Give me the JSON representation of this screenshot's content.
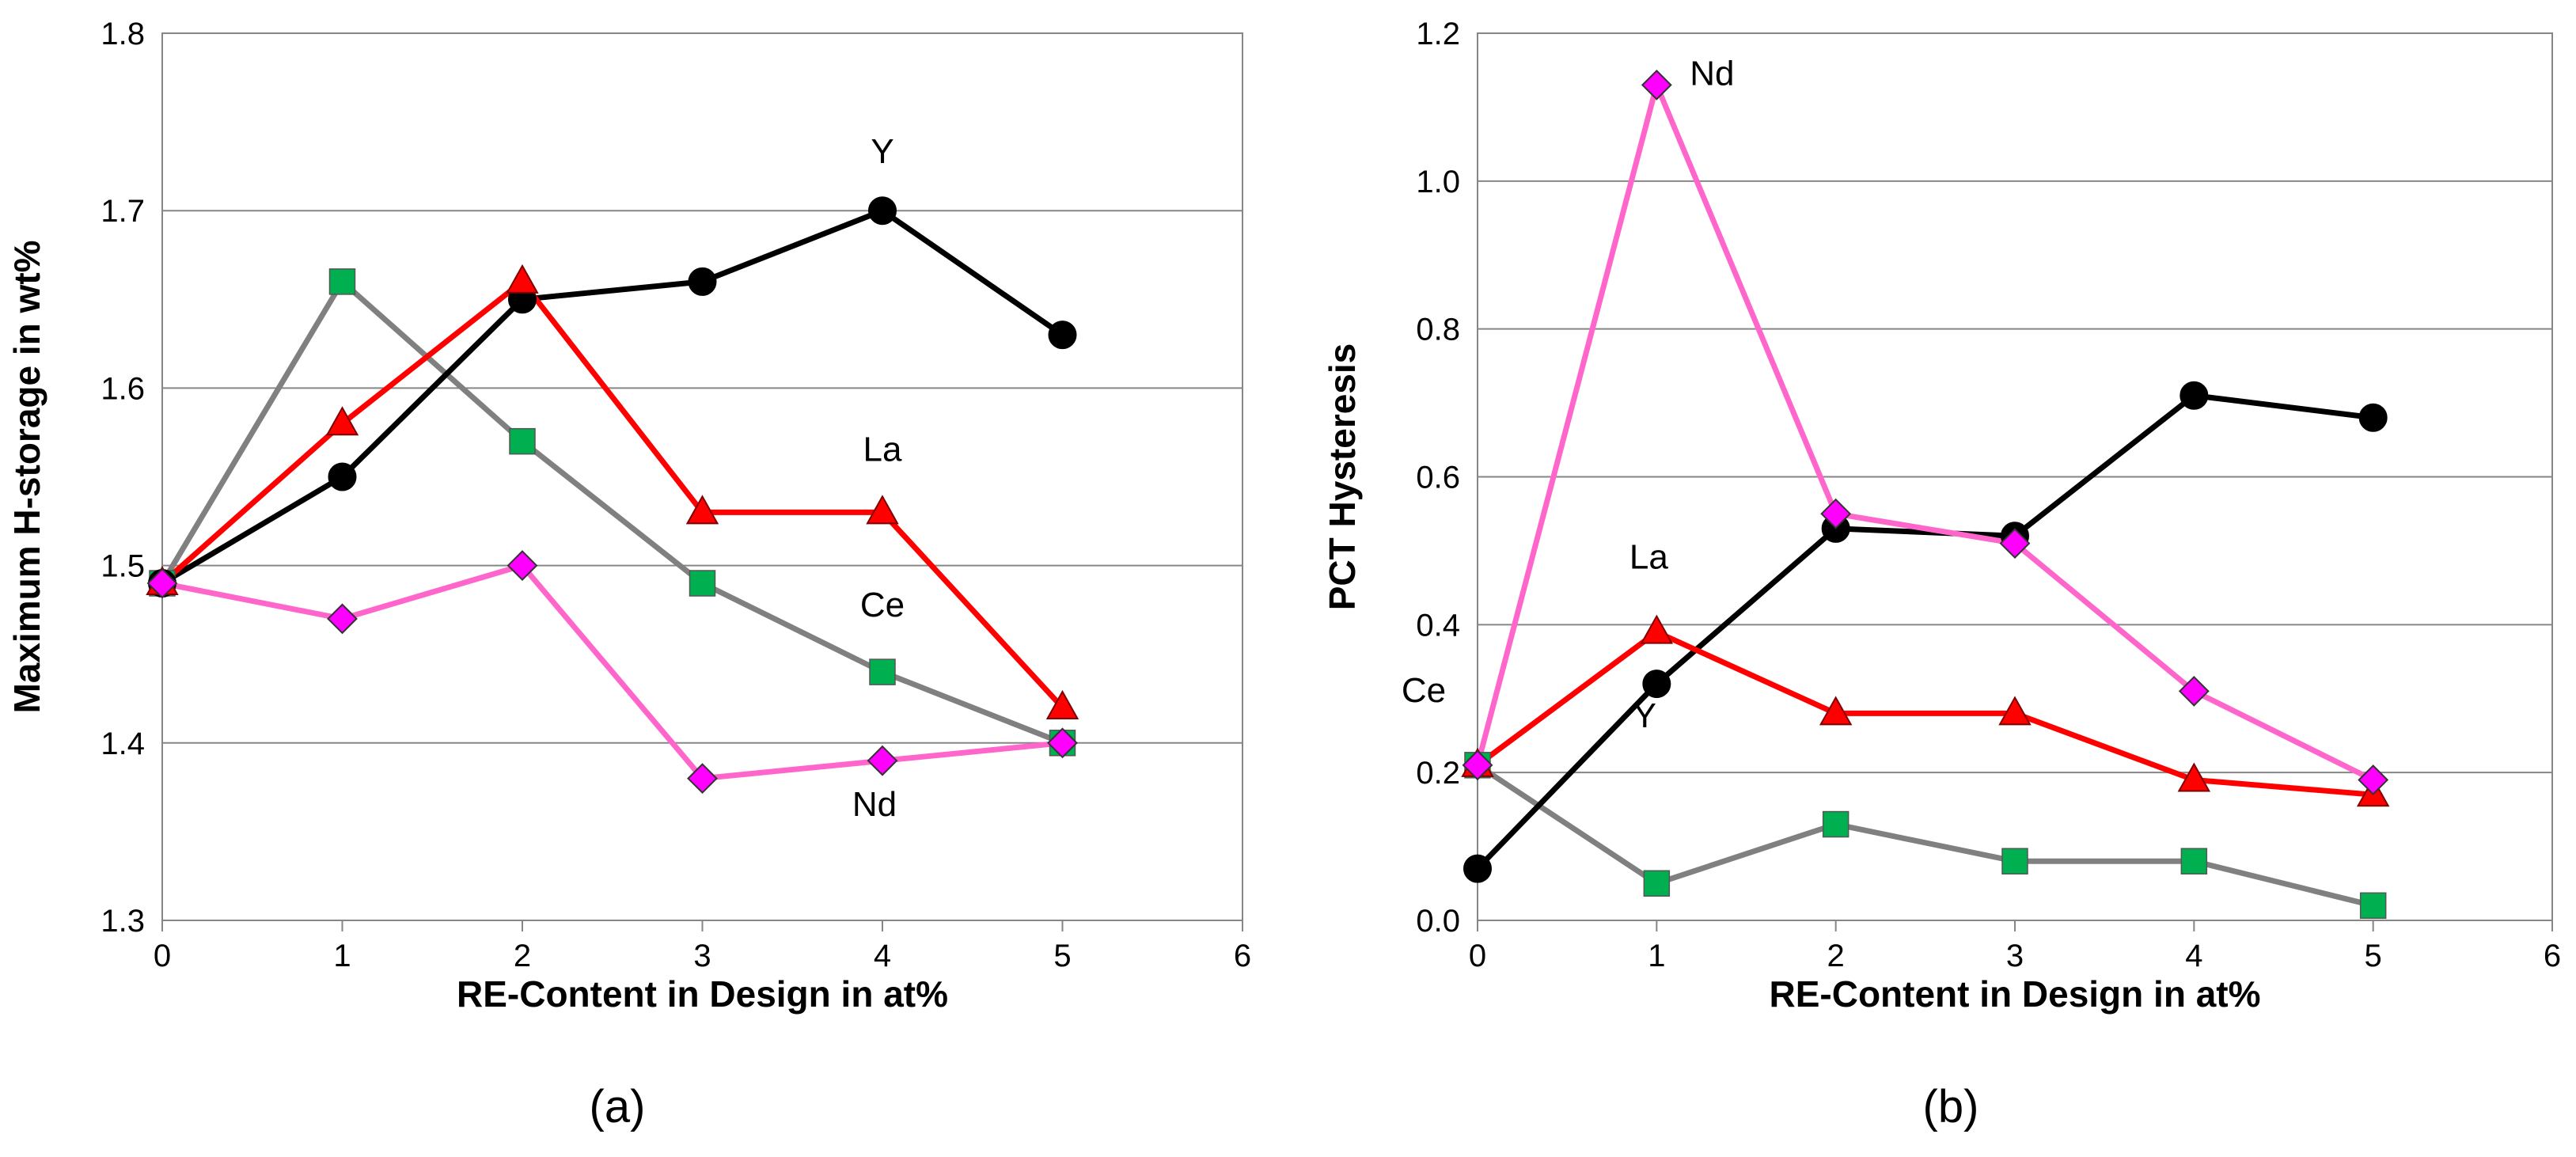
{
  "chart_data": [
    {
      "type": "line",
      "panel_label": "(a)",
      "xlabel": "RE-Content in Design in at%",
      "ylabel": "Maximum H-storage in wt%",
      "xlim": [
        0,
        6
      ],
      "ylim": [
        1.3,
        1.8
      ],
      "xticks": [
        "0",
        "1",
        "2",
        "3",
        "4",
        "5",
        "6"
      ],
      "yticks": [
        "1.3",
        "1.4",
        "1.5",
        "1.6",
        "1.7",
        "1.8"
      ],
      "grid": "horizontal",
      "x": [
        0,
        1,
        2,
        3,
        4,
        5
      ],
      "series": [
        {
          "name": "Ce",
          "color": "#808080",
          "marker": "square",
          "marker_color": "#00b050",
          "values": [
            1.49,
            1.66,
            1.57,
            1.49,
            1.44,
            1.4
          ]
        },
        {
          "name": "Y",
          "color": "#000000",
          "marker": "circle",
          "marker_color": "#000000",
          "values": [
            1.49,
            1.55,
            1.65,
            1.66,
            1.7,
            1.63
          ]
        },
        {
          "name": "La",
          "color": "#ff0000",
          "marker": "triangle",
          "marker_color": "#ff0000",
          "values": [
            1.49,
            1.58,
            1.66,
            1.53,
            1.53,
            1.42
          ]
        },
        {
          "name": "Nd",
          "color": "#ff66cc",
          "marker": "diamond",
          "marker_color": "#ff00ff",
          "values": [
            1.49,
            1.47,
            1.5,
            1.38,
            1.39,
            1.4
          ]
        }
      ]
    },
    {
      "type": "line",
      "panel_label": "(b)",
      "xlabel": "RE-Content in Design in at%",
      "ylabel": "PCT Hysteresis",
      "xlim": [
        0,
        6
      ],
      "ylim": [
        0.0,
        1.2
      ],
      "xticks": [
        "0",
        "1",
        "2",
        "3",
        "4",
        "5",
        "6"
      ],
      "yticks": [
        "0.0",
        "0.2",
        "0.4",
        "0.6",
        "0.8",
        "1.0",
        "1.2"
      ],
      "grid": "horizontal",
      "x": [
        0,
        1,
        2,
        3,
        4,
        5
      ],
      "series": [
        {
          "name": "Ce",
          "color": "#808080",
          "marker": "square",
          "marker_color": "#00b050",
          "values": [
            0.21,
            0.05,
            0.13,
            0.08,
            0.08,
            0.02
          ]
        },
        {
          "name": "Y",
          "color": "#000000",
          "marker": "circle",
          "marker_color": "#000000",
          "values": [
            0.07,
            0.32,
            0.53,
            0.52,
            0.71,
            0.68
          ]
        },
        {
          "name": "La",
          "color": "#ff0000",
          "marker": "triangle",
          "marker_color": "#ff0000",
          "values": [
            0.21,
            0.39,
            0.28,
            0.28,
            0.19,
            0.17
          ]
        },
        {
          "name": "Nd",
          "color": "#ff66cc",
          "marker": "diamond",
          "marker_color": "#ff00ff",
          "values": [
            0.21,
            1.13,
            0.55,
            0.51,
            0.31,
            0.19
          ]
        }
      ]
    }
  ]
}
